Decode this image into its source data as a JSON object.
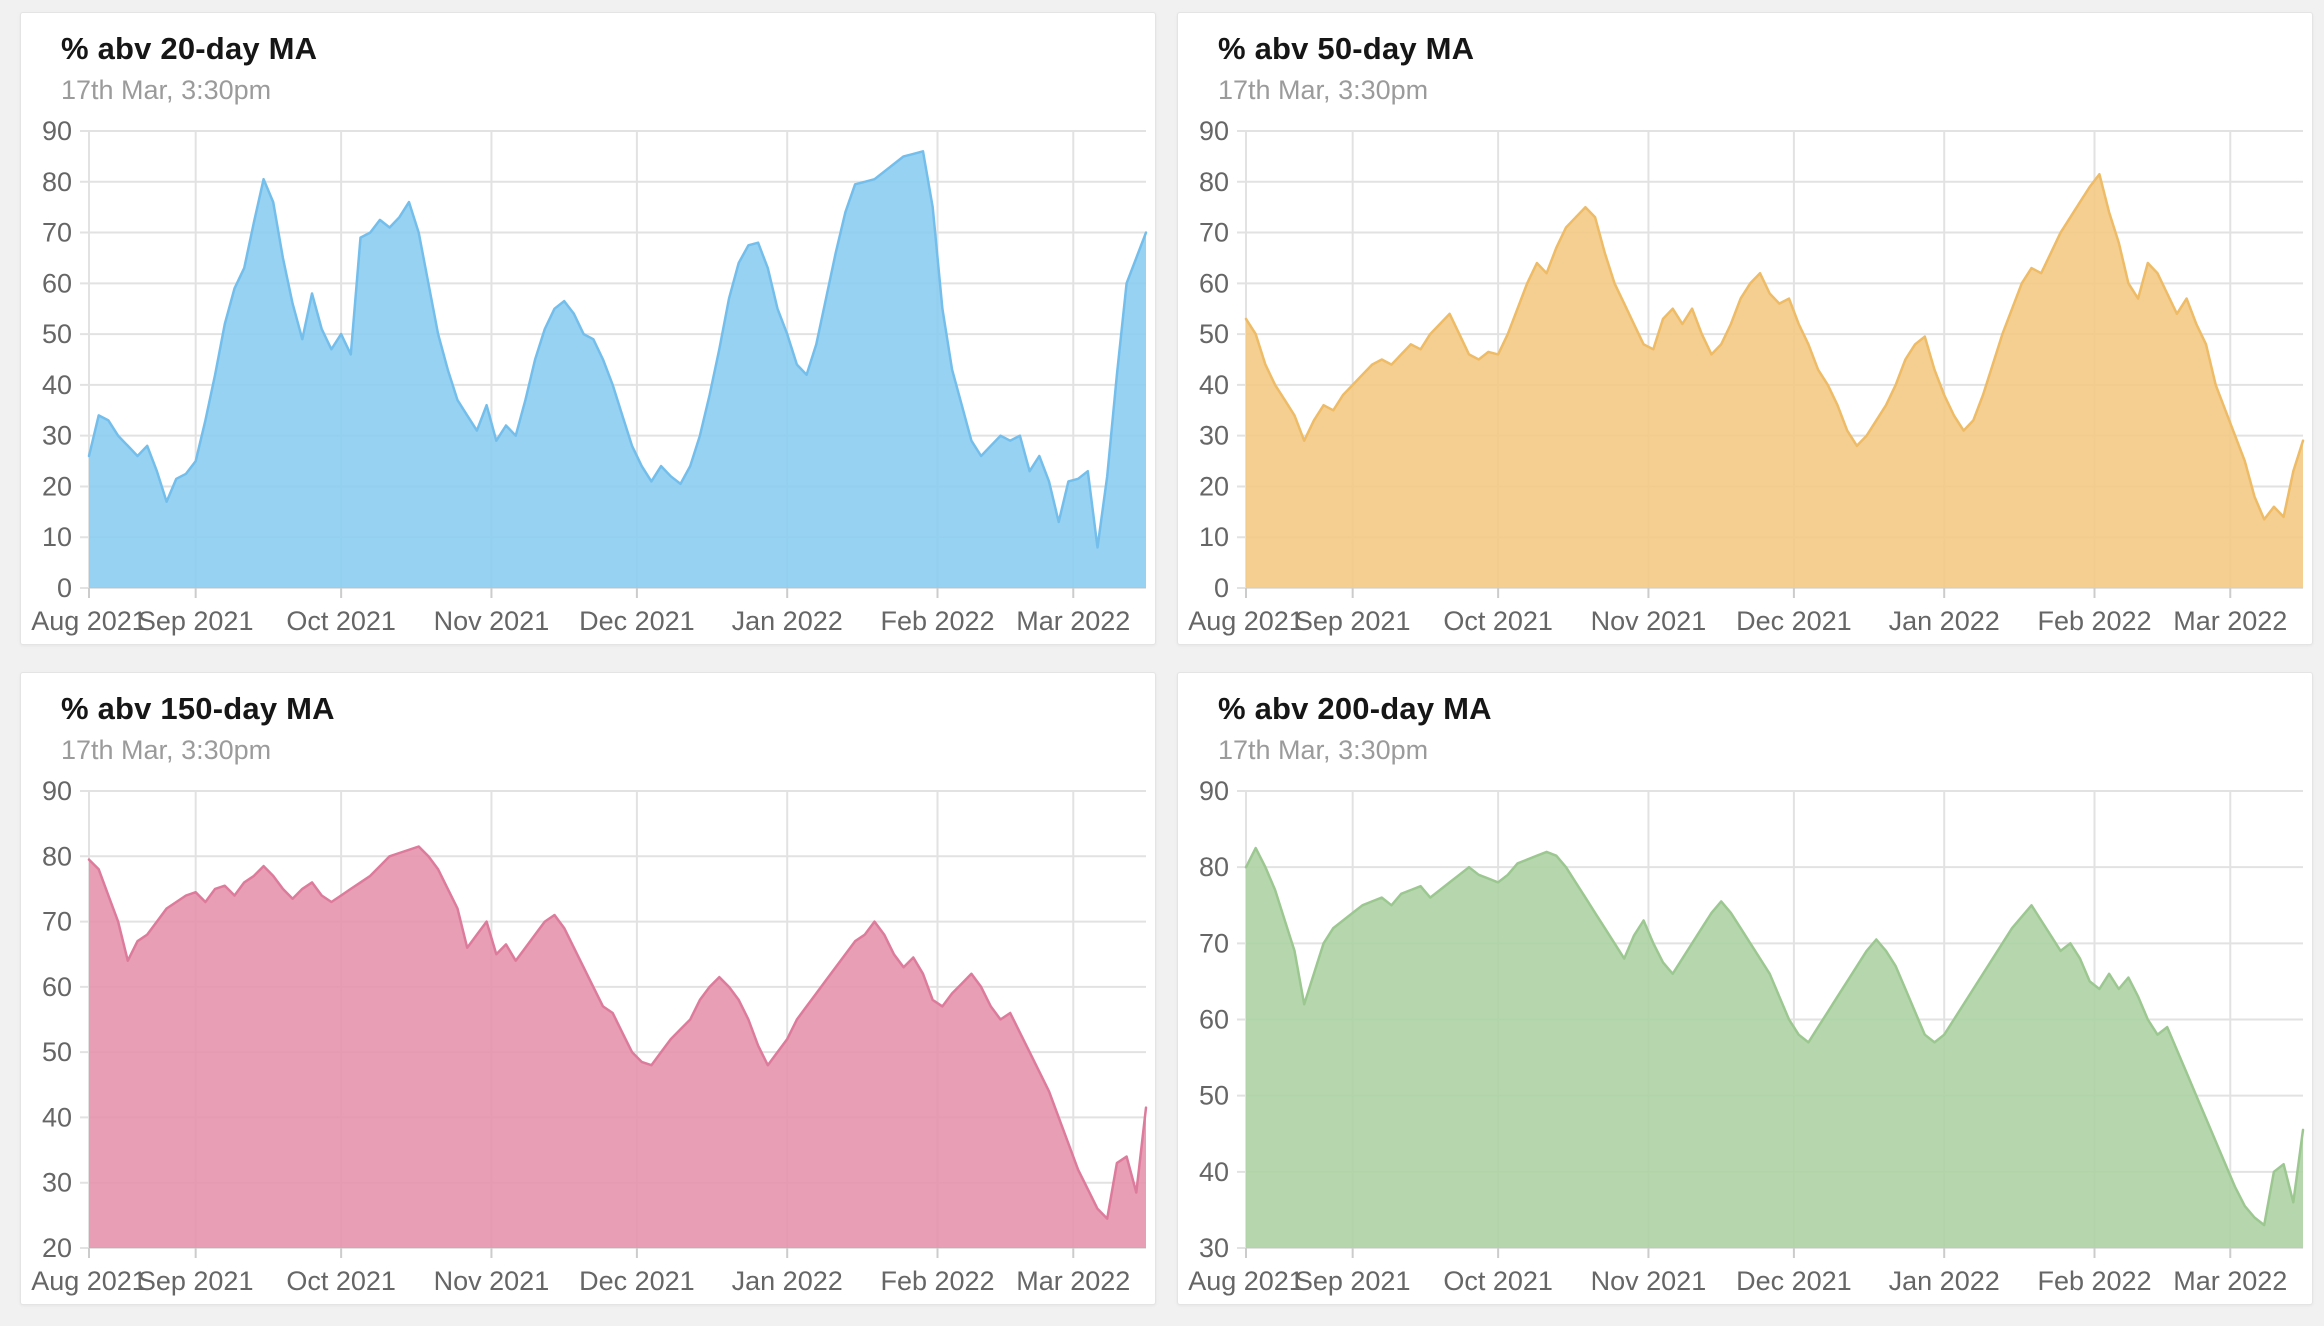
{
  "page": {
    "background_color": "#f1f1f1",
    "card_background": "#ffffff",
    "grid_color": "#e2e2e2",
    "axis_text_color": "#666666"
  },
  "chart_data": [
    {
      "type": "area",
      "title": "% abv 20-day MA",
      "subtitle": "17th Mar, 3:30pm",
      "fill_color": "#8CCDF1",
      "line_color": "#74BEEC",
      "ylim": [
        0,
        90
      ],
      "y_step": 10,
      "grid": true,
      "legend": "none",
      "x_tick_labels": [
        "Aug 2021",
        "Sep 2021",
        "Oct 2021",
        "Nov 2021",
        "Dec 2021",
        "Jan 2022",
        "Feb 2022",
        "Mar 2022"
      ],
      "tick_days": [
        0,
        22,
        52,
        83,
        113,
        144,
        175,
        203
      ],
      "total_days": 218,
      "sample_interval_days": 2,
      "values": [
        26,
        34,
        33,
        30,
        28,
        26,
        28,
        23,
        17,
        21.5,
        22.5,
        25,
        33,
        42,
        52,
        59,
        63,
        72,
        80.5,
        76,
        65,
        56,
        49,
        58,
        51,
        47,
        50,
        46,
        69,
        70,
        72.5,
        71,
        73,
        76,
        70,
        60,
        50,
        43,
        37,
        34,
        31,
        36,
        29,
        32,
        30,
        37,
        45,
        51,
        55,
        56.5,
        54,
        50,
        49,
        45,
        40,
        34,
        28,
        24,
        21,
        24,
        22,
        20.5,
        24,
        30,
        38,
        47,
        57,
        64,
        67.5,
        68,
        63,
        55,
        50,
        44,
        42,
        48,
        57,
        66,
        74,
        79.5,
        80,
        80.5,
        82,
        83.5,
        85,
        85.5,
        86,
        75,
        55,
        43,
        36,
        29,
        26,
        28,
        30,
        29,
        30,
        23,
        26,
        21,
        13,
        21,
        21.5,
        23,
        8,
        22,
        42,
        60,
        65,
        70
      ]
    },
    {
      "type": "area",
      "title": "% abv 50-day MA",
      "subtitle": "17th Mar, 3:30pm",
      "fill_color": "#F4CA85",
      "line_color": "#EEBB66",
      "ylim": [
        0,
        90
      ],
      "y_step": 10,
      "grid": true,
      "legend": "none",
      "x_tick_labels": [
        "Aug 2021",
        "Sep 2021",
        "Oct 2021",
        "Nov 2021",
        "Dec 2021",
        "Jan 2022",
        "Feb 2022",
        "Mar 2022"
      ],
      "tick_days": [
        0,
        22,
        52,
        83,
        113,
        144,
        175,
        203
      ],
      "total_days": 218,
      "sample_interval_days": 2,
      "values": [
        53,
        50,
        44,
        40,
        37,
        34,
        29,
        33,
        36,
        35,
        38,
        40,
        42,
        44,
        45,
        44,
        46,
        48,
        47,
        50,
        52,
        54,
        50,
        46,
        45,
        46.5,
        46,
        50,
        55,
        60,
        64,
        62,
        67,
        71,
        73,
        75,
        73,
        66,
        60,
        56,
        52,
        48,
        47,
        53,
        55,
        52,
        55,
        50,
        46,
        48,
        52,
        57,
        60,
        62,
        58,
        56,
        57,
        52,
        48,
        43,
        40,
        36,
        31,
        28,
        30,
        33,
        36,
        40,
        45,
        48,
        49.5,
        43,
        38,
        34,
        31,
        33,
        38,
        44,
        50,
        55,
        60,
        63,
        62,
        66,
        70,
        73,
        76,
        79,
        81.5,
        74,
        68,
        60,
        57,
        64,
        62,
        58,
        54,
        57,
        52,
        48,
        40,
        35,
        30,
        25,
        18,
        13.5,
        16,
        14,
        23,
        29
      ]
    },
    {
      "type": "area",
      "title": "% abv 150-day MA",
      "subtitle": "17th Mar, 3:30pm",
      "fill_color": "#E593AC",
      "line_color": "#DD7B9C",
      "ylim": [
        20,
        90
      ],
      "y_step": 10,
      "grid": true,
      "legend": "none",
      "x_tick_labels": [
        "Aug 2021",
        "Sep 2021",
        "Oct 2021",
        "Nov 2021",
        "Dec 2021",
        "Jan 2022",
        "Feb 2022",
        "Mar 2022"
      ],
      "tick_days": [
        0,
        22,
        52,
        83,
        113,
        144,
        175,
        203
      ],
      "total_days": 218,
      "sample_interval_days": 2,
      "values": [
        79.5,
        78,
        74,
        70,
        64,
        67,
        68,
        70,
        72,
        73,
        74,
        74.5,
        73,
        75,
        75.5,
        74,
        76,
        77,
        78.5,
        77,
        75,
        73.5,
        75,
        76,
        74,
        73,
        74,
        75,
        76,
        77,
        78.5,
        80,
        80.5,
        81,
        81.5,
        80,
        78,
        75,
        72,
        66,
        68,
        70,
        65,
        66.5,
        64,
        66,
        68,
        70,
        71,
        69,
        66,
        63,
        60,
        57,
        56,
        53,
        50,
        48.5,
        48,
        50,
        52,
        53.5,
        55,
        58,
        60,
        61.5,
        60,
        58,
        55,
        51,
        48,
        50,
        52,
        55,
        57,
        59,
        61,
        63,
        65,
        67,
        68,
        70,
        68,
        65,
        63,
        64.5,
        62,
        58,
        57,
        59,
        60.5,
        62,
        60,
        57,
        55,
        56,
        53,
        50,
        47,
        44,
        40,
        36,
        32,
        29,
        26,
        24.5,
        33,
        34,
        28.5,
        41.5
      ]
    },
    {
      "type": "area",
      "title": "% abv 200-day MA",
      "subtitle": "17th Mar, 3:30pm",
      "fill_color": "#AED3A4",
      "line_color": "#9CC791",
      "ylim": [
        30,
        90
      ],
      "y_step": 10,
      "grid": true,
      "legend": "none",
      "x_tick_labels": [
        "Aug 2021",
        "Sep 2021",
        "Oct 2021",
        "Nov 2021",
        "Dec 2021",
        "Jan 2022",
        "Feb 2022",
        "Mar 2022"
      ],
      "tick_days": [
        0,
        22,
        52,
        83,
        113,
        144,
        175,
        203
      ],
      "total_days": 218,
      "sample_interval_days": 2,
      "values": [
        80,
        82.5,
        80,
        77,
        73,
        69,
        62,
        66,
        70,
        72,
        73,
        74,
        75,
        75.5,
        76,
        75,
        76.5,
        77,
        77.5,
        76,
        77,
        78,
        79,
        80,
        79,
        78.5,
        78,
        79,
        80.5,
        81,
        81.5,
        82,
        81.5,
        80,
        78,
        76,
        74,
        72,
        70,
        68,
        71,
        73,
        70,
        67.5,
        66,
        68,
        70,
        72,
        74,
        75.5,
        74,
        72,
        70,
        68,
        66,
        63,
        60,
        58,
        57,
        59,
        61,
        63,
        65,
        67,
        69,
        70.5,
        69,
        67,
        64,
        61,
        58,
        57,
        58,
        60,
        62,
        64,
        66,
        68,
        70,
        72,
        73.5,
        75,
        73,
        71,
        69,
        70,
        68,
        65,
        64,
        66,
        64,
        65.5,
        63,
        60,
        58,
        59,
        56,
        53,
        50,
        47,
        44,
        41,
        38,
        35.5,
        34,
        33,
        40,
        41,
        36,
        45.5
      ]
    }
  ]
}
